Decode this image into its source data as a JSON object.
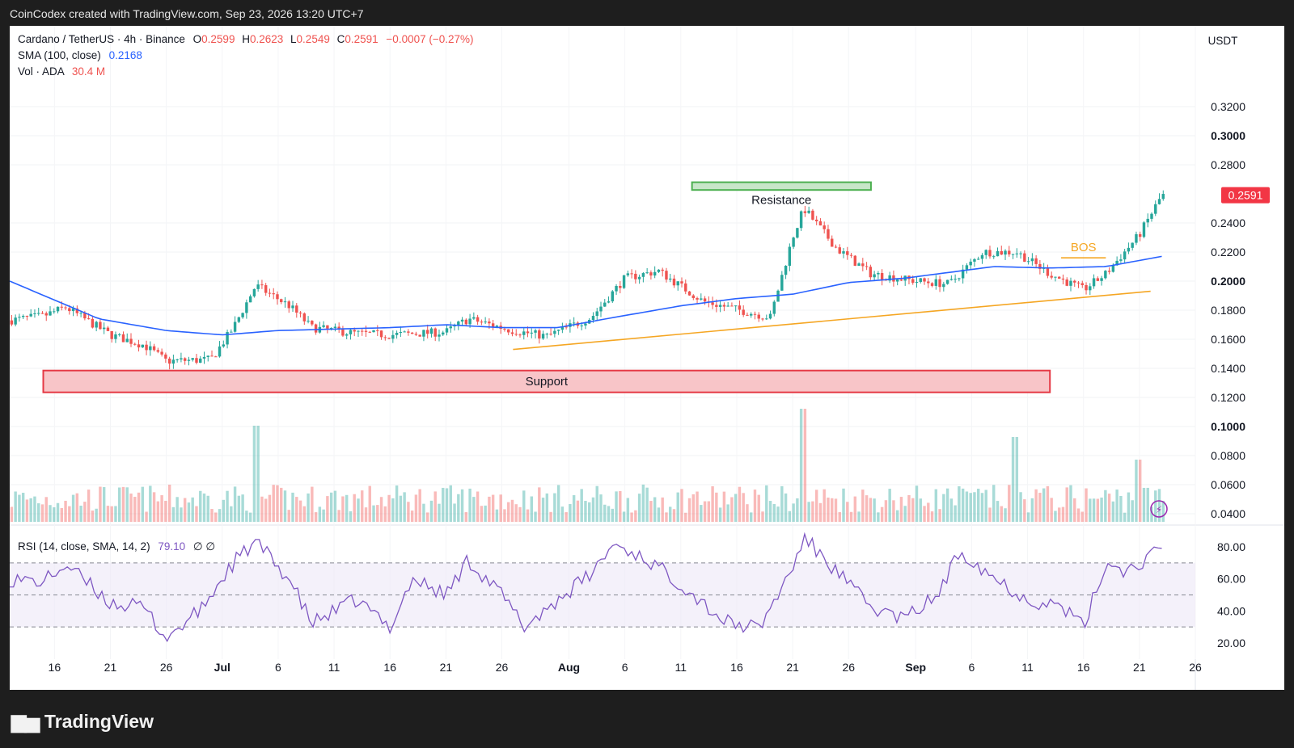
{
  "header": {
    "caption": "CoinCodex created with TradingView.com, Sep 23, 2026 13:20 UTC+7"
  },
  "legend": {
    "symbol": "Cardano / TetherUS · 4h · Binance",
    "o_label": "O",
    "o_value": "0.2599",
    "h_label": "H",
    "h_value": "0.2623",
    "l_label": "L",
    "l_value": "0.2549",
    "c_label": "C",
    "c_value": "0.2591",
    "change": "−0.0007 (−0.27%)",
    "sma_label": "SMA (100, close)",
    "sma_value": "0.2168",
    "vol_label": "Vol · ADA",
    "vol_value": "30.4 M",
    "rsi_label": "RSI (14, close, SMA, 14, 2)",
    "rsi_value": "79.10",
    "rsi_extra": "∅  ∅"
  },
  "price_axis": {
    "currency": "USDT",
    "ticks": [
      "0.3200",
      "0.3000",
      "0.2800",
      "0.2400",
      "0.2200",
      "0.2000",
      "0.1800",
      "0.1600",
      "0.1400",
      "0.1200",
      "0.1000",
      "0.0800",
      "0.0600",
      "0.0400"
    ],
    "tick_values": [
      0.32,
      0.3,
      0.28,
      0.24,
      0.22,
      0.2,
      0.18,
      0.16,
      0.14,
      0.12,
      0.1,
      0.08,
      0.06,
      0.04
    ],
    "bold": [
      "0.3000",
      "0.2000",
      "0.1000"
    ],
    "last_price": "0.2591"
  },
  "rsi_axis": {
    "ticks": [
      "80.00",
      "60.00",
      "40.00",
      "20.00"
    ],
    "tick_values": [
      80,
      60,
      40,
      20
    ]
  },
  "time_axis": {
    "ticks": [
      "16",
      "21",
      "26",
      "Jul",
      "6",
      "11",
      "16",
      "21",
      "26",
      "Aug",
      "6",
      "11",
      "16",
      "21",
      "26",
      "Sep",
      "6",
      "11",
      "16",
      "21",
      "26"
    ],
    "bold": [
      "Jul",
      "Aug",
      "Sep"
    ]
  },
  "annotations": {
    "resistance": "Resistance",
    "support": "Support",
    "bos": "BOS"
  },
  "colors": {
    "up": "#26a69a",
    "down": "#ef5350",
    "sma": "#2962ff",
    "rsi": "#7e57c2",
    "trend": "#f5a623",
    "last_price_bg": "#f23645"
  },
  "footer": {
    "brand": "TradingView"
  },
  "chart_data": [
    {
      "type": "candlestick",
      "title": "Cardano / TetherUS · 4h · Binance",
      "ylim": [
        0.03,
        0.33
      ],
      "x_range": [
        "2026-06-12",
        "2026-09-26"
      ],
      "last_close": 0.2591,
      "close_path_dates": [
        "2026-06-12",
        "2026-06-15",
        "2026-06-17",
        "2026-06-21",
        "2026-06-24",
        "2026-06-26",
        "2026-06-30",
        "2026-07-02",
        "2026-07-04",
        "2026-07-07",
        "2026-07-09",
        "2026-07-13",
        "2026-07-16",
        "2026-07-21",
        "2026-07-23",
        "2026-07-27",
        "2026-07-30",
        "2026-08-03",
        "2026-08-06",
        "2026-08-09",
        "2026-08-13",
        "2026-08-19",
        "2026-08-21",
        "2026-08-22",
        "2026-08-25",
        "2026-08-28",
        "2026-09-01",
        "2026-09-04",
        "2026-09-07",
        "2026-09-10",
        "2026-09-13",
        "2026-09-16",
        "2026-09-18",
        "2026-09-21",
        "2026-09-23"
      ],
      "close_path": [
        0.173,
        0.176,
        0.182,
        0.163,
        0.156,
        0.145,
        0.146,
        0.168,
        0.197,
        0.183,
        0.168,
        0.164,
        0.163,
        0.165,
        0.174,
        0.166,
        0.162,
        0.175,
        0.202,
        0.207,
        0.186,
        0.175,
        0.23,
        0.25,
        0.222,
        0.205,
        0.2,
        0.198,
        0.22,
        0.22,
        0.205,
        0.194,
        0.205,
        0.232,
        0.259
      ],
      "sma_100_dates": [
        "2026-06-12",
        "2026-06-20",
        "2026-06-26",
        "2026-07-01",
        "2026-07-06",
        "2026-07-16",
        "2026-07-21",
        "2026-07-26",
        "2026-07-31",
        "2026-08-05",
        "2026-08-11",
        "2026-08-16",
        "2026-08-21",
        "2026-08-26",
        "2026-08-31",
        "2026-09-05",
        "2026-09-08",
        "2026-09-13",
        "2026-09-18",
        "2026-09-23"
      ],
      "sma_100": [
        0.2,
        0.174,
        0.166,
        0.163,
        0.166,
        0.168,
        0.17,
        0.168,
        0.168,
        0.175,
        0.183,
        0.188,
        0.191,
        0.199,
        0.202,
        0.207,
        0.21,
        0.209,
        0.21,
        0.217
      ]
    },
    {
      "type": "bar",
      "title": "Vol · ADA",
      "unit": "M ADA",
      "last_value": 30.4,
      "spike_dates": [
        "2026-07-04",
        "2026-08-22",
        "2026-09-10",
        "2026-09-21"
      ],
      "spike_heights_rel": [
        0.85,
        1.0,
        0.75,
        0.55
      ]
    },
    {
      "type": "line",
      "title": "RSI (14, close, SMA, 14, 2)",
      "ylim": [
        10,
        90
      ],
      "bands": [
        30,
        50,
        70
      ],
      "dates": [
        "2026-06-12",
        "2026-06-15",
        "2026-06-17",
        "2026-06-21",
        "2026-06-24",
        "2026-06-26",
        "2026-06-29",
        "2026-07-02",
        "2026-07-04",
        "2026-07-07",
        "2026-07-09",
        "2026-07-13",
        "2026-07-16",
        "2026-07-18",
        "2026-07-21",
        "2026-07-23",
        "2026-07-26",
        "2026-07-28",
        "2026-07-31",
        "2026-08-03",
        "2026-08-05",
        "2026-08-08",
        "2026-08-11",
        "2026-08-15",
        "2026-08-18",
        "2026-08-21",
        "2026-08-22",
        "2026-08-25",
        "2026-08-28",
        "2026-08-31",
        "2026-09-03",
        "2026-09-05",
        "2026-09-08",
        "2026-09-11",
        "2026-09-14",
        "2026-09-16",
        "2026-09-18",
        "2026-09-20",
        "2026-09-23"
      ],
      "values": [
        60,
        58,
        69,
        45,
        42,
        23,
        40,
        70,
        83,
        60,
        32,
        47,
        30,
        60,
        50,
        72,
        50,
        30,
        47,
        63,
        82,
        72,
        57,
        33,
        29,
        67,
        86,
        64,
        42,
        35,
        50,
        78,
        61,
        47,
        43,
        30,
        70,
        65,
        79.1
      ]
    }
  ]
}
